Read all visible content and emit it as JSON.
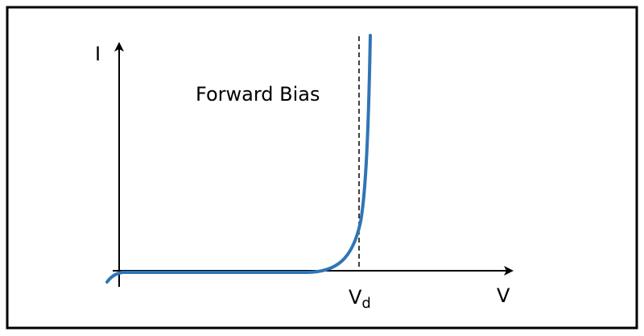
{
  "axes": {
    "y_label": "I",
    "x_label": "V"
  },
  "annotation": "Forward Bias",
  "marker": {
    "label": "V",
    "subscript": "d"
  }
}
